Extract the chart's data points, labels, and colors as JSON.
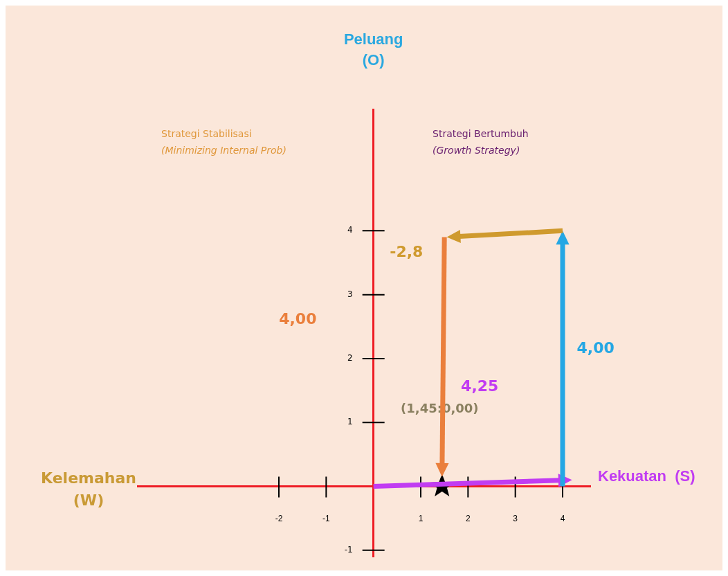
{
  "chart_data": {
    "type": "scatter",
    "xlabel": "Kekuatan  (S)",
    "ylabel": "Peluang\n(O)",
    "annotations": [
      "Kelemahan\n(W)",
      "Strategi Stabilisasi\n(Minimizing Internal Prob)",
      "Strategi Bertumbuh\n(Growth Strategy)",
      "(1,45:0,00)",
      "4,25",
      "4,00",
      "-2,8",
      "4,00"
    ],
    "xlim": [
      -5,
      4.6
    ],
    "ylim": [
      -1.1,
      5.9
    ],
    "xticks": [
      -2,
      -1,
      1,
      2,
      3,
      4
    ],
    "yticks": [
      -1,
      1,
      2,
      3,
      4
    ],
    "ref_lines": [
      {
        "axis": "y",
        "value": 0,
        "color": "#ee1c24"
      }
    ],
    "series": [
      {
        "marker": "star",
        "color": "#000000",
        "x": [
          1.45
        ],
        "values": [
          0
        ]
      }
    ]
  }
}
